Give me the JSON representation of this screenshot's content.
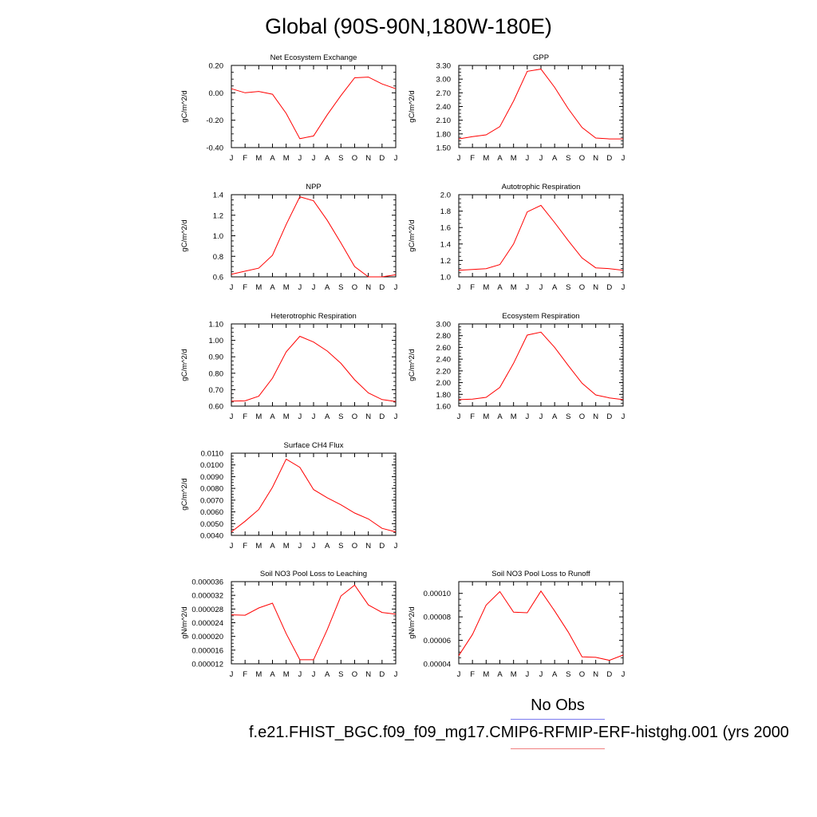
{
  "title": "Global (90S-90N,180W-180E)",
  "legend": {
    "no_obs": "No Obs",
    "case": "f.e21.FHIST_BGC.f09_f09_mg17.CMIP6-RFMIP-ERF-histghg.001 (yrs 2000",
    "obs_color": "#7a7aee",
    "case_color": "#ff0000"
  },
  "chart_data": [
    {
      "id": "nee",
      "type": "line",
      "title": "Net Ecosystem Exchange",
      "ylabel": "gC/m^2/d",
      "x": [
        "J",
        "F",
        "M",
        "A",
        "M",
        "J",
        "J",
        "A",
        "S",
        "O",
        "N",
        "D",
        "J"
      ],
      "ylim": [
        -0.4,
        0.2
      ],
      "yticks": [
        "0.20",
        "0.00",
        "-0.20",
        "-0.40"
      ],
      "series": [
        {
          "color": "#ff0000",
          "values": [
            0.03,
            0.0,
            0.01,
            -0.01,
            -0.15,
            -0.335,
            -0.315,
            -0.16,
            -0.02,
            0.11,
            0.115,
            0.065,
            0.03
          ]
        }
      ]
    },
    {
      "id": "gpp",
      "type": "line",
      "title": "GPP",
      "ylabel": "gC/m^2/d",
      "x": [
        "J",
        "F",
        "M",
        "A",
        "M",
        "J",
        "J",
        "A",
        "S",
        "O",
        "N",
        "D",
        "J"
      ],
      "ylim": [
        1.5,
        3.3
      ],
      "yticks": [
        "3.30",
        "3.00",
        "2.70",
        "2.40",
        "2.10",
        "1.80",
        "1.50"
      ],
      "series": [
        {
          "color": "#ff0000",
          "values": [
            1.69,
            1.74,
            1.78,
            1.96,
            2.52,
            3.17,
            3.22,
            2.82,
            2.35,
            1.94,
            1.71,
            1.69,
            1.69
          ]
        }
      ]
    },
    {
      "id": "npp",
      "type": "line",
      "title": "NPP",
      "ylabel": "gC/m^2/d",
      "x": [
        "J",
        "F",
        "M",
        "A",
        "M",
        "J",
        "J",
        "A",
        "S",
        "O",
        "N",
        "D",
        "J"
      ],
      "ylim": [
        0.6,
        1.4
      ],
      "yticks": [
        "1.4",
        "1.2",
        "1.0",
        "0.8",
        "0.6"
      ],
      "series": [
        {
          "color": "#ff0000",
          "values": [
            0.625,
            0.655,
            0.685,
            0.81,
            1.11,
            1.38,
            1.34,
            1.15,
            0.93,
            0.7,
            0.6,
            0.6,
            0.62
          ]
        }
      ]
    },
    {
      "id": "ar",
      "type": "line",
      "title": "Autotrophic Respiration",
      "ylabel": "gC/m^2/d",
      "x": [
        "J",
        "F",
        "M",
        "A",
        "M",
        "J",
        "J",
        "A",
        "S",
        "O",
        "N",
        "D",
        "J"
      ],
      "ylim": [
        1.0,
        2.0
      ],
      "yticks": [
        "2.0",
        "1.8",
        "1.6",
        "1.4",
        "1.2",
        "1.0"
      ],
      "series": [
        {
          "color": "#ff0000",
          "values": [
            1.08,
            1.09,
            1.1,
            1.15,
            1.4,
            1.79,
            1.87,
            1.66,
            1.44,
            1.23,
            1.11,
            1.1,
            1.08
          ]
        }
      ]
    },
    {
      "id": "hr",
      "type": "line",
      "title": "Heterotrophic Respiration",
      "ylabel": "gC/m^2/d",
      "x": [
        "J",
        "F",
        "M",
        "A",
        "M",
        "J",
        "J",
        "A",
        "S",
        "O",
        "N",
        "D",
        "J"
      ],
      "ylim": [
        0.6,
        1.1
      ],
      "yticks": [
        "1.10",
        "1.00",
        "0.90",
        "0.80",
        "0.70",
        "0.60"
      ],
      "series": [
        {
          "color": "#ff0000",
          "values": [
            0.63,
            0.632,
            0.66,
            0.77,
            0.93,
            1.025,
            0.99,
            0.935,
            0.86,
            0.76,
            0.68,
            0.64,
            0.628
          ]
        }
      ]
    },
    {
      "id": "er",
      "type": "line",
      "title": "Ecosystem Respiration",
      "ylabel": "gC/m^2/d",
      "x": [
        "J",
        "F",
        "M",
        "A",
        "M",
        "J",
        "J",
        "A",
        "S",
        "O",
        "N",
        "D",
        "J"
      ],
      "ylim": [
        1.6,
        3.0
      ],
      "yticks": [
        "3.00",
        "2.80",
        "2.60",
        "2.40",
        "2.20",
        "2.00",
        "1.80",
        "1.60"
      ],
      "series": [
        {
          "color": "#ff0000",
          "values": [
            1.71,
            1.72,
            1.75,
            1.92,
            2.33,
            2.81,
            2.86,
            2.6,
            2.29,
            1.99,
            1.79,
            1.74,
            1.71
          ]
        }
      ]
    },
    {
      "id": "ch4",
      "type": "line",
      "title": "Surface CH4 Flux",
      "ylabel": "gC/m^2/d",
      "x": [
        "J",
        "F",
        "M",
        "A",
        "M",
        "J",
        "J",
        "A",
        "S",
        "O",
        "N",
        "D",
        "J"
      ],
      "ylim": [
        0.004,
        0.011
      ],
      "yticks": [
        "0.0110",
        "0.0100",
        "0.0090",
        "0.0080",
        "0.0070",
        "0.0060",
        "0.0050",
        "0.0040"
      ],
      "series": [
        {
          "color": "#ff0000",
          "values": [
            0.0043,
            0.0052,
            0.0062,
            0.0081,
            0.0105,
            0.0098,
            0.0079,
            0.0072,
            0.0066,
            0.0059,
            0.0054,
            0.0046,
            0.0043
          ]
        }
      ]
    },
    {
      "id": "leach",
      "type": "line",
      "title": "Soil NO3 Pool Loss to Leaching",
      "ylabel": "gN/m^2/d",
      "x": [
        "J",
        "F",
        "M",
        "A",
        "M",
        "J",
        "J",
        "A",
        "S",
        "O",
        "N",
        "D",
        "J"
      ],
      "ylim": [
        1.2e-05,
        3.6e-05
      ],
      "yticks": [
        "0.000036",
        "0.000032",
        "0.000028",
        "0.000024",
        "0.000020",
        "0.000016",
        "0.000012"
      ],
      "series": [
        {
          "color": "#ff0000",
          "values": [
            2.63e-05,
            2.62e-05,
            2.83e-05,
            2.97e-05,
            2.08e-05,
            1.32e-05,
            1.32e-05,
            2.2e-05,
            3.18e-05,
            3.5e-05,
            2.92e-05,
            2.7e-05,
            2.65e-05
          ]
        }
      ]
    },
    {
      "id": "runoff",
      "type": "line",
      "title": "Soil NO3 Pool Loss to Runoff",
      "ylabel": "gN/m^2/d",
      "x": [
        "J",
        "F",
        "M",
        "A",
        "M",
        "J",
        "J",
        "A",
        "S",
        "O",
        "N",
        "D",
        "J"
      ],
      "ylim": [
        4e-05,
        0.00011
      ],
      "yticks": [
        "0.00010",
        "0.00008",
        "0.00006",
        "0.00004"
      ],
      "yticks_values": [
        0.0001,
        8e-05,
        6e-05,
        4e-05
      ],
      "series": [
        {
          "color": "#ff0000",
          "values": [
            4.7e-05,
            6.5e-05,
            9e-05,
            0.0001015,
            8.4e-05,
            8.35e-05,
            0.000102,
            8.5e-05,
            6.7e-05,
            4.6e-05,
            4.55e-05,
            4.3e-05,
            4.75e-05
          ]
        }
      ]
    }
  ]
}
